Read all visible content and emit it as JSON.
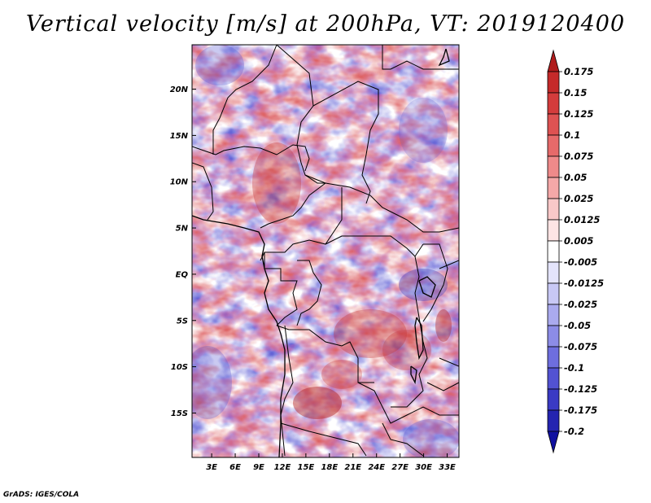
{
  "title": "Vertical velocity [m/s] at 200hPa, VT: 2019120400",
  "credit": "GrADS: IGES/COLA",
  "map": {
    "lat_labels": [
      "20N",
      "15N",
      "10N",
      "5N",
      "EQ",
      "5S",
      "10S",
      "15S"
    ],
    "lat_values": [
      20,
      15,
      10,
      5,
      0,
      -5,
      -10,
      -15
    ],
    "lon_labels": [
      "3E",
      "6E",
      "9E",
      "12E",
      "15E",
      "18E",
      "21E",
      "24E",
      "27E",
      "30E",
      "33E"
    ],
    "lon_values": [
      3,
      6,
      9,
      12,
      15,
      18,
      21,
      24,
      27,
      30,
      33
    ],
    "lon_range": [
      0.5,
      34.5
    ],
    "lat_range": [
      -19.8,
      24.8
    ]
  },
  "colorbar": {
    "levels": [
      "0.175",
      "0.15",
      "0.125",
      "0.1",
      "0.075",
      "0.05",
      "0.025",
      "0.0125",
      "0.005",
      "-0.005",
      "-0.0125",
      "-0.025",
      "-0.05",
      "-0.075",
      "-0.1",
      "-0.125",
      "-0.175",
      "-0.2"
    ],
    "colors": [
      "#b01c1c",
      "#c52a2a",
      "#d43c3c",
      "#de5252",
      "#e66a6a",
      "#ef8a8a",
      "#f5a8a8",
      "#f9c8c8",
      "#fde4e4",
      "#ffffff",
      "#e4e4fb",
      "#c8c8f5",
      "#aaaaee",
      "#8c8ce6",
      "#6e6ede",
      "#5252d2",
      "#3a3ac4",
      "#2424b0",
      "#1010a0"
    ]
  }
}
